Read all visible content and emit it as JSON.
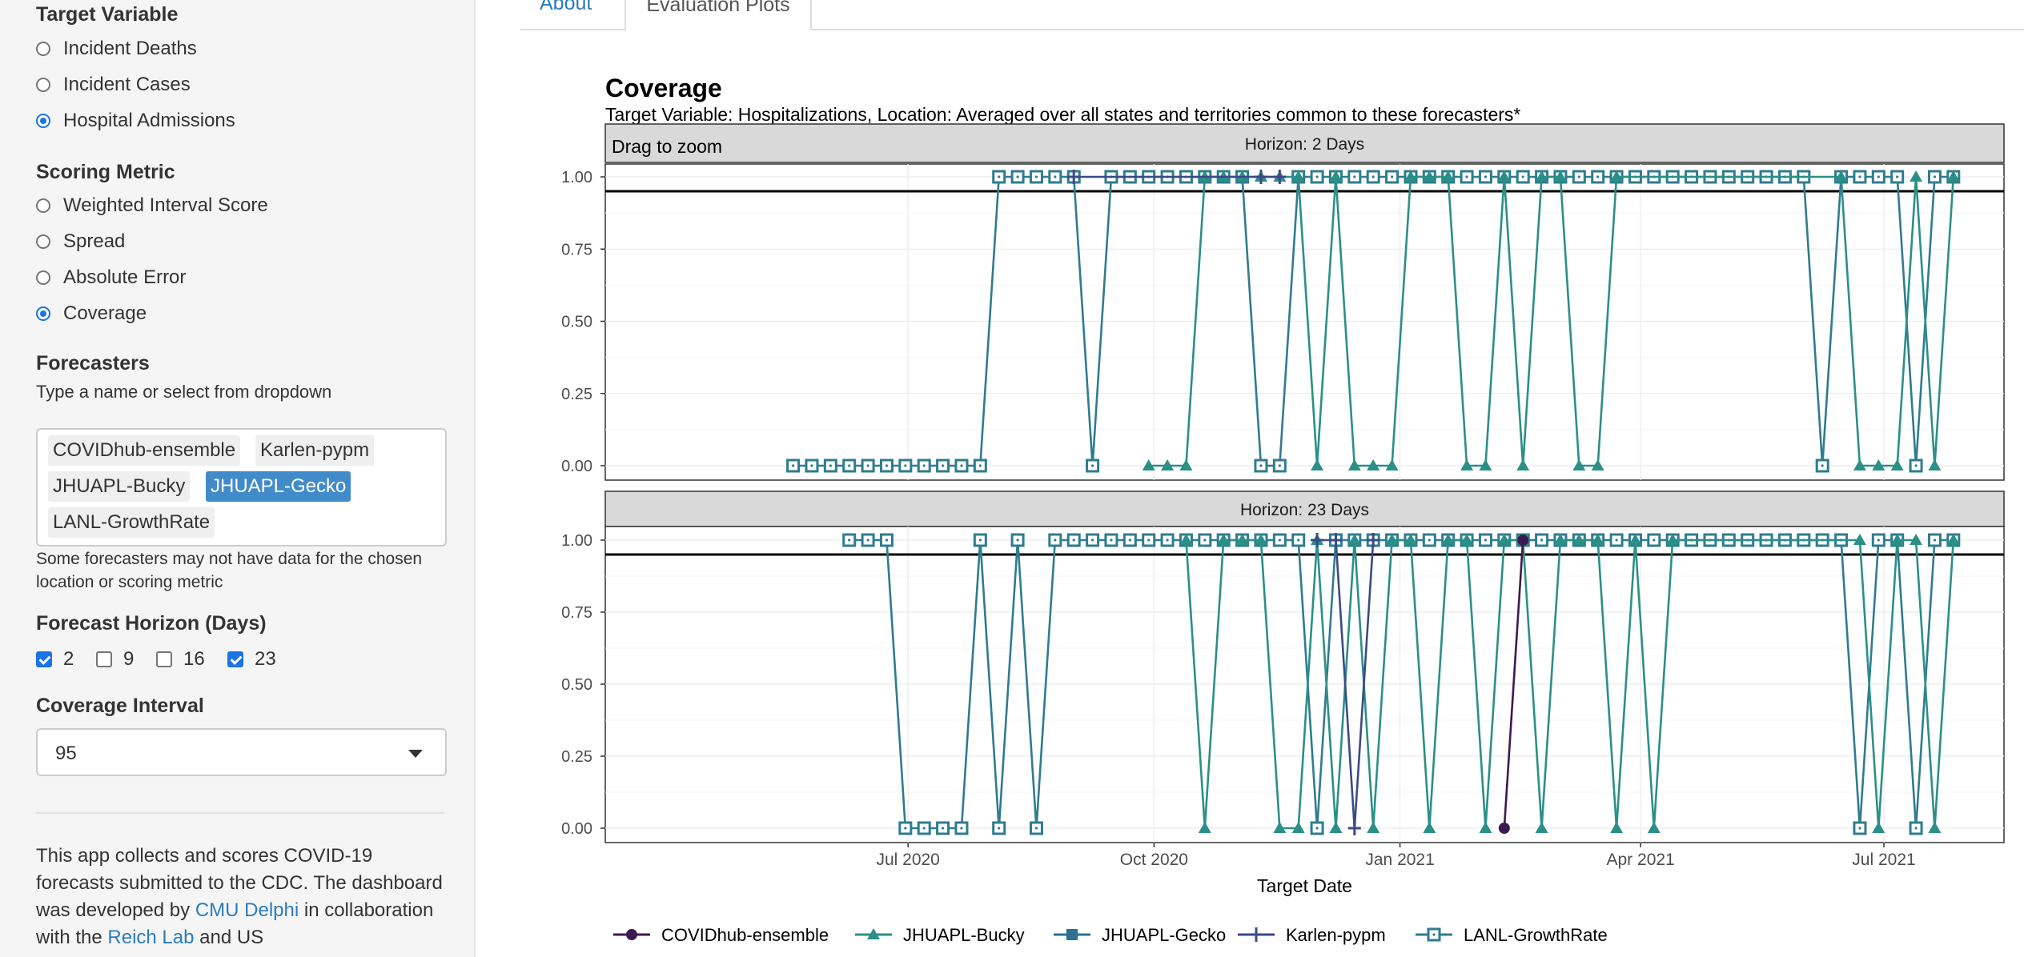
{
  "sidebar": {
    "target_variable": {
      "title": "Target Variable",
      "options": [
        "Incident Deaths",
        "Incident Cases",
        "Hospital Admissions"
      ],
      "selected": "Hospital Admissions"
    },
    "scoring_metric": {
      "title": "Scoring Metric",
      "options": [
        "Weighted Interval Score",
        "Spread",
        "Absolute Error",
        "Coverage"
      ],
      "selected": "Coverage"
    },
    "forecasters": {
      "title": "Forecasters",
      "hint": "Type a name or select from dropdown",
      "chips": [
        "COVIDhub-ensemble",
        "Karlen-pypm",
        "JHUAPL-Bucky",
        "JHUAPL-Gecko",
        "LANL-GrowthRate"
      ],
      "active_chip": "JHUAPL-Gecko",
      "note": "Some forecasters may not have data for the chosen location or scoring metric"
    },
    "forecast_horizon": {
      "title": "Forecast Horizon (Days)",
      "options": [
        {
          "label": "2",
          "checked": true
        },
        {
          "label": "9",
          "checked": false
        },
        {
          "label": "16",
          "checked": false
        },
        {
          "label": "23",
          "checked": true
        }
      ]
    },
    "coverage_interval": {
      "title": "Coverage Interval",
      "value": "95"
    },
    "about": {
      "line1": "This app collects and scores COVID-19 forecasts submitted to the CDC. The dashboard was developed by",
      "link1": "CMU Delphi",
      "line2": "in collaboration with the",
      "link2": "Reich Lab",
      "line3": "and US"
    }
  },
  "tabs": [
    "About",
    "Evaluation Plots"
  ],
  "active_tab": "Evaluation Plots",
  "plot": {
    "title": "Coverage",
    "subtitle": "Target Variable: Hospitalizations, Location: Averaged over all states and territories common to these forecasters*",
    "drag_hint": "Drag to zoom"
  },
  "chart_data": {
    "type": "line",
    "xlabel": "Target Date",
    "x_ticks": [
      "Jul 2020",
      "Oct 2020",
      "Jan 2021",
      "Apr 2021",
      "Jul 2021"
    ],
    "y_ticks": [
      "0.00",
      "0.25",
      "0.50",
      "0.75",
      "1.00"
    ],
    "ylim": [
      0,
      1
    ],
    "reference_line": 0.95,
    "legend": [
      "COVIDhub-ensemble",
      "JHUAPL-Bucky",
      "JHUAPL-Gecko",
      "Karlen-pypm",
      "LANL-GrowthRate"
    ],
    "legend_placement": "bottom",
    "colors": {
      "COVIDhub-ensemble": "#3b1a52",
      "JHUAPL-Bucky": "#2a9087",
      "JHUAPL-Gecko": "#2d6f8e",
      "Karlen-pypm": "#3b4a86",
      "LANL-GrowthRate": "#2f7c8f"
    },
    "panels": [
      {
        "title": "Horizon: 2 Days",
        "series": [
          {
            "name": "LANL-GrowthRate",
            "points": [
              [
                "2020-05-19",
                0
              ],
              [
                "2020-05-26",
                0
              ],
              [
                "2020-06-02",
                0
              ],
              [
                "2020-06-09",
                0
              ],
              [
                "2020-06-16",
                0
              ],
              [
                "2020-06-23",
                0
              ],
              [
                "2020-06-30",
                0
              ],
              [
                "2020-07-07",
                0
              ],
              [
                "2020-07-14",
                0
              ],
              [
                "2020-07-21",
                0
              ],
              [
                "2020-07-28",
                0
              ],
              [
                "2020-08-04",
                1
              ],
              [
                "2020-08-11",
                1
              ],
              [
                "2020-08-18",
                1
              ],
              [
                "2020-08-25",
                1
              ],
              [
                "2020-09-01",
                1
              ],
              [
                "2020-09-08",
                0
              ],
              [
                "2020-09-15",
                1
              ],
              [
                "2020-09-22",
                1
              ],
              [
                "2020-09-29",
                1
              ],
              [
                "2020-10-06",
                1
              ],
              [
                "2020-10-13",
                1
              ],
              [
                "2020-10-20",
                1
              ],
              [
                "2020-10-27",
                1
              ],
              [
                "2020-11-03",
                1
              ],
              [
                "2020-11-10",
                0
              ],
              [
                "2020-11-17",
                0
              ],
              [
                "2020-11-24",
                1
              ],
              [
                "2020-12-01",
                1
              ],
              [
                "2020-12-08",
                1
              ],
              [
                "2020-12-15",
                1
              ],
              [
                "2020-12-22",
                1
              ],
              [
                "2020-12-29",
                1
              ],
              [
                "2021-01-05",
                1
              ],
              [
                "2021-01-12",
                1
              ],
              [
                "2021-01-19",
                1
              ],
              [
                "2021-01-26",
                1
              ],
              [
                "2021-02-02",
                1
              ],
              [
                "2021-02-09",
                1
              ],
              [
                "2021-02-16",
                1
              ],
              [
                "2021-02-23",
                1
              ],
              [
                "2021-03-02",
                1
              ],
              [
                "2021-03-09",
                1
              ],
              [
                "2021-03-16",
                1
              ],
              [
                "2021-03-23",
                1
              ],
              [
                "2021-03-30",
                1
              ],
              [
                "2021-04-06",
                1
              ],
              [
                "2021-04-13",
                1
              ],
              [
                "2021-04-20",
                1
              ],
              [
                "2021-04-27",
                1
              ],
              [
                "2021-05-04",
                1
              ],
              [
                "2021-05-11",
                1
              ],
              [
                "2021-05-18",
                1
              ],
              [
                "2021-05-25",
                1
              ],
              [
                "2021-06-01",
                1
              ],
              [
                "2021-06-08",
                0
              ],
              [
                "2021-06-15",
                1
              ],
              [
                "2021-06-22",
                1
              ],
              [
                "2021-06-29",
                1
              ],
              [
                "2021-07-06",
                1
              ],
              [
                "2021-07-13",
                0
              ],
              [
                "2021-07-20",
                1
              ],
              [
                "2021-07-27",
                1
              ]
            ]
          },
          {
            "name": "JHUAPL-Bucky",
            "points": [
              [
                "2020-09-29",
                0
              ],
              [
                "2020-10-06",
                0
              ],
              [
                "2020-10-13",
                0
              ],
              [
                "2020-10-20",
                1
              ],
              [
                "2020-10-27",
                1
              ],
              [
                "2020-11-03",
                1
              ],
              [
                "2020-11-10",
                1
              ],
              [
                "2020-11-17",
                1
              ],
              [
                "2020-11-24",
                1
              ],
              [
                "2020-12-01",
                0
              ],
              [
                "2020-12-08",
                1
              ],
              [
                "2020-12-15",
                0
              ],
              [
                "2020-12-22",
                0
              ],
              [
                "2020-12-29",
                0
              ],
              [
                "2021-01-05",
                1
              ],
              [
                "2021-01-12",
                1
              ],
              [
                "2021-01-19",
                1
              ],
              [
                "2021-01-26",
                0
              ],
              [
                "2021-02-02",
                0
              ],
              [
                "2021-02-09",
                1
              ],
              [
                "2021-02-16",
                0
              ],
              [
                "2021-02-23",
                1
              ],
              [
                "2021-03-02",
                1
              ],
              [
                "2021-03-09",
                0
              ],
              [
                "2021-03-16",
                0
              ],
              [
                "2021-03-23",
                1
              ],
              [
                "2021-06-15",
                1
              ],
              [
                "2021-06-22",
                0
              ],
              [
                "2021-06-29",
                0
              ],
              [
                "2021-07-06",
                0
              ],
              [
                "2021-07-13",
                1
              ],
              [
                "2021-07-20",
                0
              ],
              [
                "2021-07-27",
                1
              ]
            ]
          },
          {
            "name": "Karlen-pypm",
            "points": [
              [
                "2020-09-01",
                1
              ],
              [
                "2020-11-10",
                1
              ],
              [
                "2020-11-17",
                1
              ]
            ]
          }
        ]
      },
      {
        "title": "Horizon: 23 Days",
        "series": [
          {
            "name": "LANL-GrowthRate",
            "points": [
              [
                "2020-06-09",
                1
              ],
              [
                "2020-06-16",
                1
              ],
              [
                "2020-06-23",
                1
              ],
              [
                "2020-06-30",
                0
              ],
              [
                "2020-07-07",
                0
              ],
              [
                "2020-07-14",
                0
              ],
              [
                "2020-07-21",
                0
              ],
              [
                "2020-07-28",
                1
              ],
              [
                "2020-08-04",
                0
              ],
              [
                "2020-08-11",
                1
              ],
              [
                "2020-08-18",
                0
              ],
              [
                "2020-08-25",
                1
              ],
              [
                "2020-09-01",
                1
              ],
              [
                "2020-09-08",
                1
              ],
              [
                "2020-09-15",
                1
              ],
              [
                "2020-09-22",
                1
              ],
              [
                "2020-09-29",
                1
              ],
              [
                "2020-10-06",
                1
              ],
              [
                "2020-10-13",
                1
              ],
              [
                "2020-10-20",
                1
              ],
              [
                "2020-10-27",
                1
              ],
              [
                "2020-11-03",
                1
              ],
              [
                "2020-11-10",
                1
              ],
              [
                "2020-11-17",
                1
              ],
              [
                "2020-11-24",
                1
              ],
              [
                "2020-12-01",
                0
              ],
              [
                "2020-12-08",
                1
              ],
              [
                "2020-12-15",
                1
              ],
              [
                "2020-12-22",
                1
              ],
              [
                "2020-12-29",
                1
              ],
              [
                "2021-01-05",
                1
              ],
              [
                "2021-01-12",
                1
              ],
              [
                "2021-01-19",
                1
              ],
              [
                "2021-01-26",
                1
              ],
              [
                "2021-02-02",
                1
              ],
              [
                "2021-02-09",
                1
              ],
              [
                "2021-02-16",
                1
              ],
              [
                "2021-02-23",
                1
              ],
              [
                "2021-03-02",
                1
              ],
              [
                "2021-03-09",
                1
              ],
              [
                "2021-03-16",
                1
              ],
              [
                "2021-03-23",
                1
              ],
              [
                "2021-03-30",
                1
              ],
              [
                "2021-04-06",
                1
              ],
              [
                "2021-04-13",
                1
              ],
              [
                "2021-04-20",
                1
              ],
              [
                "2021-04-27",
                1
              ],
              [
                "2021-05-04",
                1
              ],
              [
                "2021-05-11",
                1
              ],
              [
                "2021-05-18",
                1
              ],
              [
                "2021-05-25",
                1
              ],
              [
                "2021-06-01",
                1
              ],
              [
                "2021-06-08",
                1
              ],
              [
                "2021-06-15",
                1
              ],
              [
                "2021-06-22",
                0
              ],
              [
                "2021-06-29",
                1
              ],
              [
                "2021-07-06",
                1
              ],
              [
                "2021-07-13",
                0
              ],
              [
                "2021-07-20",
                1
              ],
              [
                "2021-07-27",
                1
              ]
            ]
          },
          {
            "name": "JHUAPL-Bucky",
            "points": [
              [
                "2020-10-13",
                1
              ],
              [
                "2020-10-20",
                0
              ],
              [
                "2020-10-27",
                1
              ],
              [
                "2020-11-03",
                1
              ],
              [
                "2020-11-10",
                1
              ],
              [
                "2020-11-17",
                0
              ],
              [
                "2020-11-24",
                0
              ],
              [
                "2020-12-01",
                1
              ],
              [
                "2020-12-08",
                0
              ],
              [
                "2020-12-15",
                1
              ],
              [
                "2020-12-22",
                0
              ],
              [
                "2020-12-29",
                1
              ],
              [
                "2021-01-05",
                1
              ],
              [
                "2021-01-12",
                0
              ],
              [
                "2021-01-19",
                1
              ],
              [
                "2021-01-26",
                1
              ],
              [
                "2021-02-02",
                0
              ],
              [
                "2021-02-09",
                1
              ],
              [
                "2021-02-16",
                1
              ],
              [
                "2021-02-23",
                0
              ],
              [
                "2021-03-02",
                1
              ],
              [
                "2021-03-09",
                1
              ],
              [
                "2021-03-16",
                1
              ],
              [
                "2021-03-23",
                0
              ],
              [
                "2021-03-30",
                1
              ],
              [
                "2021-04-06",
                0
              ],
              [
                "2021-04-13",
                1
              ],
              [
                "2021-06-22",
                1
              ],
              [
                "2021-06-29",
                0
              ],
              [
                "2021-07-06",
                1
              ],
              [
                "2021-07-13",
                1
              ],
              [
                "2021-07-20",
                0
              ],
              [
                "2021-07-27",
                1
              ]
            ]
          },
          {
            "name": "Karlen-pypm",
            "points": [
              [
                "2020-12-01",
                1
              ],
              [
                "2020-12-08",
                1
              ],
              [
                "2020-12-15",
                0
              ],
              [
                "2020-12-22",
                1
              ]
            ]
          },
          {
            "name": "COVIDhub-ensemble",
            "points": [
              [
                "2021-02-09",
                0
              ],
              [
                "2021-02-16",
                1
              ]
            ]
          }
        ]
      }
    ]
  }
}
